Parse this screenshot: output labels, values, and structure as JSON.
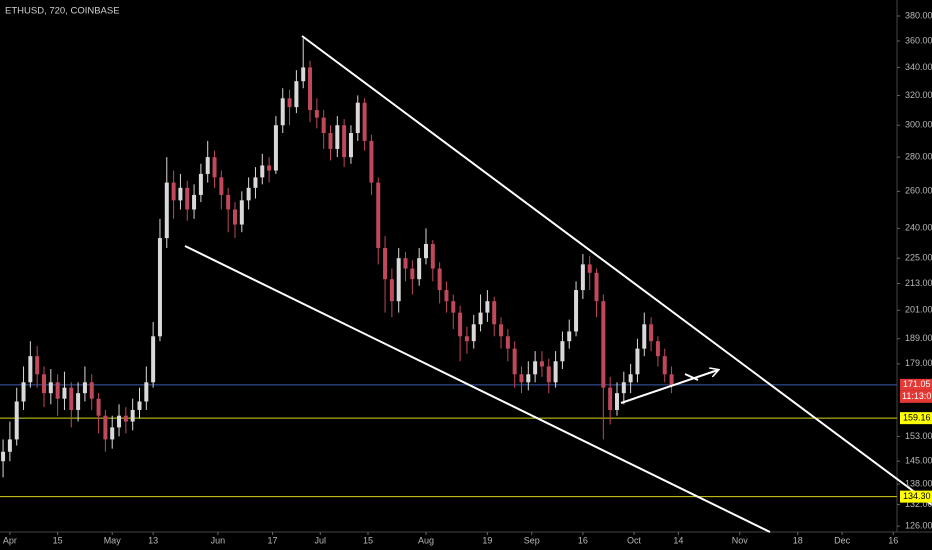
{
  "chart_data": {
    "type": "candlestick",
    "title": "ETHUSD, 720, COINBASE",
    "log_scale": true,
    "up_color": "#d9d9d9",
    "down_color": "#c0485a",
    "xlim": [
      -2.9,
      260.1
    ],
    "ylim": [
      124.4,
      393.4
    ],
    "xticks": [
      {
        "value": 0,
        "label": "Apr"
      },
      {
        "value": 14,
        "label": "15"
      },
      {
        "value": 30,
        "label": "May"
      },
      {
        "value": 42,
        "label": "13"
      },
      {
        "value": 61,
        "label": "Jun"
      },
      {
        "value": 77,
        "label": "17"
      },
      {
        "value": 91,
        "label": "Jul"
      },
      {
        "value": 105,
        "label": "15"
      },
      {
        "value": 122,
        "label": "Aug"
      },
      {
        "value": 140,
        "label": "19"
      },
      {
        "value": 153,
        "label": "Sep"
      },
      {
        "value": 168,
        "label": "16"
      },
      {
        "value": 183,
        "label": "Oct"
      },
      {
        "value": 196,
        "label": "14"
      },
      {
        "value": 214,
        "label": "Nov"
      },
      {
        "value": 231,
        "label": "18"
      },
      {
        "value": 244,
        "label": "Dec"
      },
      {
        "value": 259,
        "label": "16"
      }
    ],
    "yticks": [
      {
        "value": 380,
        "label": "380.00"
      },
      {
        "value": 360,
        "label": "360.00"
      },
      {
        "value": 340,
        "label": "340.00"
      },
      {
        "value": 320,
        "label": "320.00"
      },
      {
        "value": 300,
        "label": "300.00"
      },
      {
        "value": 280,
        "label": "280.00"
      },
      {
        "value": 260,
        "label": "260.00"
      },
      {
        "value": 240,
        "label": "240.00"
      },
      {
        "value": 225,
        "label": "225.00"
      },
      {
        "value": 213,
        "label": "213.00"
      },
      {
        "value": 201,
        "label": "201.00"
      },
      {
        "value": 189,
        "label": "189.00"
      },
      {
        "value": 179,
        "label": "179.00"
      },
      {
        "value": 153,
        "label": "153.00"
      },
      {
        "value": 145,
        "label": "145.00"
      },
      {
        "value": 138,
        "label": "138.00"
      },
      {
        "value": 132,
        "label": "132.00"
      },
      {
        "value": 126,
        "label": "126.00"
      }
    ],
    "levels": [
      {
        "value": 171.05,
        "label": "171.05",
        "line_color": "#3a5cb0",
        "label_color": "#e53935",
        "text_color": "#ffffff"
      },
      {
        "value": 159.16,
        "label": "159.16",
        "line_color": "#d4d41a",
        "label_color": "#ffff00",
        "text_color": "#000000"
      },
      {
        "value": 134.3,
        "label": "134.30",
        "line_color": "#d4d41a",
        "label_color": "#ffff00",
        "text_color": "#000000"
      }
    ],
    "countdown": "11:13:01",
    "x": [
      -2,
      0,
      2,
      4,
      6,
      8,
      10,
      12,
      14,
      16,
      18,
      20,
      22,
      24,
      26,
      28,
      30,
      32,
      34,
      36,
      38,
      40,
      42,
      44,
      46,
      48,
      50,
      52,
      54,
      56,
      58,
      60,
      62,
      64,
      66,
      68,
      70,
      72,
      74,
      76,
      78,
      80,
      82,
      84,
      86,
      88,
      90,
      92,
      94,
      96,
      98,
      100,
      102,
      104,
      106,
      108,
      110,
      112,
      114,
      116,
      118,
      120,
      122,
      124,
      126,
      128,
      130,
      132,
      134,
      136,
      138,
      140,
      142,
      144,
      146,
      148,
      150,
      152,
      154,
      156,
      158,
      160,
      162,
      164,
      166,
      168,
      170,
      172,
      174,
      176,
      178,
      180,
      182,
      184,
      186,
      188,
      190,
      192,
      194
    ],
    "open": [
      145,
      148,
      152,
      165,
      172,
      182,
      175,
      168,
      172,
      166,
      170,
      162,
      168,
      172,
      166,
      160,
      152,
      156,
      160,
      158,
      162,
      165,
      172,
      190,
      235,
      265,
      255,
      262,
      250,
      258,
      270,
      280,
      268,
      258,
      250,
      242,
      255,
      262,
      268,
      275,
      272,
      300,
      318,
      312,
      330,
      340,
      310,
      305,
      295,
      285,
      300,
      280,
      295,
      315,
      290,
      265,
      230,
      215,
      205,
      225,
      220,
      215,
      225,
      232,
      220,
      210,
      205,
      200,
      190,
      188,
      195,
      200,
      205,
      195,
      190,
      185,
      175,
      172,
      175,
      180,
      178,
      172,
      180,
      188,
      192,
      210,
      222,
      218,
      205,
      170,
      162,
      168,
      172,
      175,
      185,
      195,
      188,
      182,
      175
    ],
    "high": [
      152,
      158,
      170,
      178,
      188,
      186,
      178,
      177,
      175,
      176,
      172,
      172,
      178,
      175,
      168,
      162,
      160,
      164,
      163,
      166,
      170,
      178,
      196,
      245,
      280,
      272,
      270,
      266,
      264,
      276,
      290,
      284,
      272,
      262,
      254,
      260,
      268,
      274,
      282,
      280,
      306,
      325,
      324,
      338,
      362,
      345,
      318,
      310,
      300,
      306,
      304,
      300,
      320,
      318,
      294,
      268,
      236,
      220,
      230,
      228,
      224,
      230,
      240,
      234,
      223,
      214,
      208,
      203,
      194,
      199,
      208,
      210,
      207,
      198,
      193,
      188,
      178,
      180,
      184,
      184,
      181,
      184,
      192,
      197,
      214,
      227,
      226,
      220,
      208,
      174,
      172,
      176,
      179,
      189,
      200,
      198,
      190,
      185,
      178
    ],
    "low": [
      140,
      145,
      150,
      162,
      170,
      170,
      163,
      164,
      160,
      162,
      156,
      158,
      165,
      162,
      154,
      148,
      149,
      153,
      154,
      155,
      159,
      162,
      170,
      188,
      230,
      245,
      250,
      244,
      245,
      254,
      265,
      262,
      250,
      238,
      235,
      238,
      250,
      256,
      264,
      265,
      270,
      295,
      300,
      308,
      325,
      302,
      298,
      285,
      278,
      280,
      274,
      276,
      290,
      284,
      258,
      222,
      200,
      198,
      200,
      214,
      208,
      212,
      222,
      214,
      204,
      200,
      193,
      180,
      183,
      185,
      192,
      196,
      190,
      185,
      180,
      170,
      168,
      169,
      172,
      174,
      168,
      170,
      177,
      185,
      190,
      206,
      210,
      198,
      152,
      157,
      160,
      164,
      168,
      172,
      182,
      184,
      178,
      172,
      168
    ],
    "close": [
      148,
      152,
      165,
      172,
      182,
      175,
      168,
      172,
      166,
      170,
      162,
      168,
      172,
      166,
      160,
      152,
      156,
      160,
      158,
      162,
      165,
      172,
      190,
      235,
      265,
      255,
      262,
      250,
      258,
      270,
      280,
      268,
      258,
      250,
      242,
      255,
      262,
      268,
      275,
      272,
      300,
      318,
      312,
      330,
      340,
      310,
      305,
      295,
      285,
      300,
      280,
      295,
      315,
      290,
      265,
      230,
      215,
      205,
      225,
      220,
      215,
      225,
      232,
      220,
      210,
      205,
      200,
      190,
      188,
      195,
      200,
      205,
      195,
      190,
      185,
      175,
      172,
      175,
      180,
      178,
      172,
      180,
      188,
      192,
      210,
      222,
      218,
      205,
      170,
      162,
      168,
      172,
      175,
      185,
      195,
      188,
      182,
      175,
      171
    ]
  }
}
